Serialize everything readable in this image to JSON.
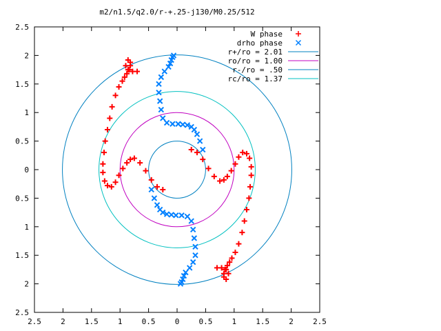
{
  "chart_data": {
    "type": "scatter",
    "title": "m2/n1.5/q2.0/r-+.25-j130/M0.25/512",
    "xlim": [
      -2.5,
      2.5
    ],
    "ylim": [
      -2.5,
      2.5
    ],
    "x_ticks": [
      -2.5,
      -2,
      -1.5,
      -1,
      -0.5,
      0,
      0.5,
      1,
      1.5,
      2,
      2.5
    ],
    "y_ticks": [
      -2.5,
      -2,
      -1.5,
      -1,
      -0.5,
      0,
      0.5,
      1,
      1.5,
      2,
      2.5
    ],
    "x_tick_labels": [
      "2.5",
      "2",
      "1.5",
      "1",
      "0.5",
      "0",
      "0.5",
      "1",
      "1.5",
      "2",
      "2.5"
    ],
    "y_tick_labels": [
      "2.5",
      "2",
      "1.5",
      "1",
      "0.5",
      "0",
      "0.5",
      "1",
      "1.5",
      "2",
      "2.5"
    ],
    "grid": false,
    "legend_position": "top-right",
    "series": [
      {
        "name": "W phase",
        "marker": "+",
        "color": "#ff0000",
        "x": [
          0.25,
          0.35,
          0.45,
          0.55,
          0.65,
          0.75,
          0.82,
          0.88,
          0.95,
          1.02,
          1.08,
          1.15,
          1.22,
          1.27,
          1.3,
          1.3,
          1.28,
          1.26,
          1.22,
          1.18,
          1.14,
          1.08,
          1.02,
          0.96,
          0.92,
          0.88,
          0.84,
          0.82,
          0.82,
          0.86,
          0.9,
          0.86,
          0.78,
          0.7,
          -0.25,
          -0.35,
          -0.45,
          -0.55,
          -0.65,
          -0.75,
          -0.82,
          -0.88,
          -0.95,
          -1.02,
          -1.08,
          -1.15,
          -1.22,
          -1.27,
          -1.3,
          -1.3,
          -1.28,
          -1.26,
          -1.22,
          -1.18,
          -1.14,
          -1.08,
          -1.02,
          -0.96,
          -0.92,
          -0.88,
          -0.84,
          -0.82,
          -0.82,
          -0.86,
          -0.9,
          -0.86,
          -0.78,
          -0.7
        ],
        "y": [
          0.35,
          0.3,
          0.18,
          0.02,
          -0.12,
          -0.2,
          -0.18,
          -0.12,
          -0.02,
          0.1,
          0.22,
          0.3,
          0.28,
          0.2,
          0.05,
          -0.1,
          -0.3,
          -0.5,
          -0.7,
          -0.9,
          -1.1,
          -1.3,
          -1.45,
          -1.55,
          -1.62,
          -1.68,
          -1.75,
          -1.82,
          -1.88,
          -1.92,
          -1.82,
          -1.75,
          -1.72,
          -1.72,
          -0.35,
          -0.3,
          -0.18,
          -0.02,
          0.12,
          0.2,
          0.18,
          0.12,
          0.02,
          -0.1,
          -0.22,
          -0.3,
          -0.28,
          -0.2,
          -0.05,
          0.1,
          0.3,
          0.5,
          0.7,
          0.9,
          1.1,
          1.3,
          1.45,
          1.55,
          1.62,
          1.68,
          1.75,
          1.82,
          1.88,
          1.92,
          1.82,
          1.75,
          1.72,
          1.72
        ]
      },
      {
        "name": "drho phase",
        "marker": "x",
        "color": "#0080ff",
        "x": [
          0.45,
          0.4,
          0.35,
          0.3,
          0.25,
          0.18,
          0.1,
          0.02,
          -0.08,
          -0.18,
          -0.25,
          -0.28,
          -0.3,
          -0.32,
          -0.32,
          -0.28,
          -0.22,
          -0.15,
          -0.12,
          -0.1,
          -0.08,
          -0.06,
          -0.45,
          -0.4,
          -0.35,
          -0.3,
          -0.25,
          -0.18,
          -0.1,
          -0.02,
          0.08,
          0.18,
          0.25,
          0.28,
          0.3,
          0.32,
          0.32,
          0.28,
          0.22,
          0.15,
          0.12,
          0.1,
          0.08,
          0.06
        ],
        "y": [
          0.35,
          0.5,
          0.62,
          0.7,
          0.75,
          0.78,
          0.79,
          0.8,
          0.8,
          0.82,
          0.9,
          1.05,
          1.2,
          1.35,
          1.5,
          1.62,
          1.72,
          1.8,
          1.86,
          1.92,
          1.97,
          2.0,
          -0.35,
          -0.5,
          -0.62,
          -0.7,
          -0.75,
          -0.78,
          -0.79,
          -0.8,
          -0.8,
          -0.82,
          -0.9,
          -1.05,
          -1.2,
          -1.35,
          -1.5,
          -1.62,
          -1.72,
          -1.8,
          -1.86,
          -1.92,
          -1.97,
          -2.0
        ]
      }
    ],
    "circles": [
      {
        "name": "r+/ro = 2.01",
        "radius": 2.01,
        "color": "#0080c0"
      },
      {
        "name": "ro/ro = 1.00",
        "radius": 1.0,
        "color": "#c000c0"
      },
      {
        "name": "r-/ro = .50",
        "radius": 0.5,
        "color": "#0080c0"
      },
      {
        "name": "rc/ro = 1.37",
        "radius": 1.37,
        "color": "#00c0c0"
      }
    ]
  }
}
